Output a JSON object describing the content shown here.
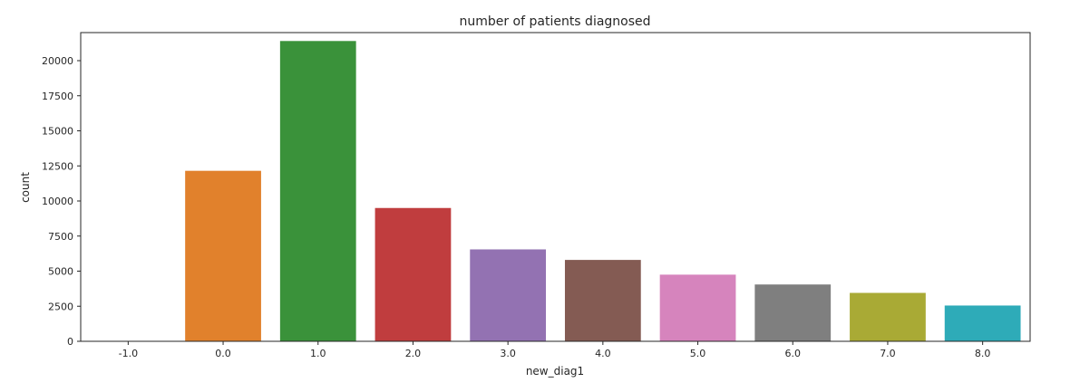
{
  "chart_data": {
    "type": "bar",
    "title": "number of patients diagnosed",
    "xlabel": "new_diag1",
    "ylabel": "count",
    "categories": [
      "-1.0",
      "0.0",
      "1.0",
      "2.0",
      "3.0",
      "4.0",
      "5.0",
      "6.0",
      "7.0",
      "8.0"
    ],
    "values": [
      0,
      12150,
      21400,
      9500,
      6550,
      5800,
      4750,
      4050,
      3450,
      2550
    ],
    "colors": [
      "#3274a1",
      "#e1812c",
      "#3a923a",
      "#c03d3e",
      "#9372b2",
      "#845b53",
      "#d684bd",
      "#7f7f7f",
      "#a9aa35",
      "#2eabb8"
    ],
    "ylim": [
      0,
      22000
    ],
    "yticks": [
      "0",
      "2500",
      "5000",
      "7500",
      "10000",
      "12500",
      "15000",
      "17500",
      "20000"
    ],
    "grid": false,
    "legend": "none"
  }
}
